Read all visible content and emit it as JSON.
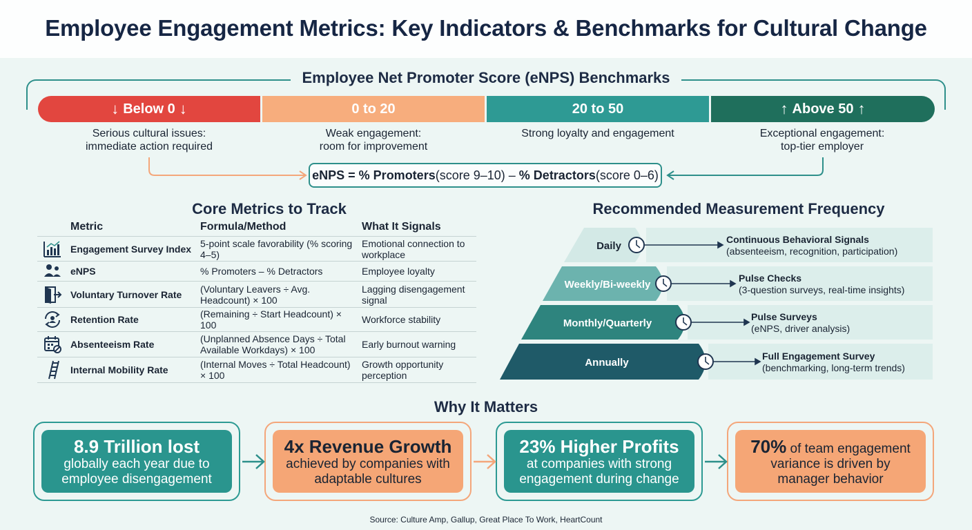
{
  "title": "Employee Engagement Metrics: Key Indicators & Benchmarks for Cultural Change",
  "enps": {
    "title": "Employee Net Promoter Score (eNPS) Benchmarks",
    "segments": [
      {
        "label": "Below 0",
        "desc_line1": "Serious cultural issues:",
        "desc_line2": "immediate action required",
        "color": "#e2463f"
      },
      {
        "label": "0 to 20",
        "desc_line1": "Weak engagement:",
        "desc_line2": "room for improvement",
        "color": "#f7ad7d"
      },
      {
        "label": "20 to 50",
        "desc_line1": "Strong loyalty and engagement",
        "desc_line2": "",
        "color": "#2e9a94"
      },
      {
        "label": "Above 50",
        "desc_line1": "Exceptional engagement:",
        "desc_line2": "top-tier employer",
        "color": "#1f6f5c"
      }
    ],
    "formula": {
      "lhs": "eNPS = ",
      "promoters": "% Promoters",
      "promoters_note": " (score 9–10) – ",
      "detractors": "% Detractors",
      "detractors_note": " (score 0–6)"
    }
  },
  "core_metrics": {
    "title": "Core Metrics to Track",
    "headers": [
      "Metric",
      "Formula/Method",
      "What It Signals"
    ],
    "rows": [
      {
        "icon": "bar-chart-icon",
        "metric": "Engagement Survey Index",
        "formula": "5-point scale favorability (% scoring 4–5)",
        "signal": "Emotional connection to workplace"
      },
      {
        "icon": "people-icon",
        "metric": "eNPS",
        "formula": "% Promoters – % Detractors",
        "signal": "Employee loyalty"
      },
      {
        "icon": "exit-door-icon",
        "metric": "Voluntary Turnover Rate",
        "formula": "(Voluntary Leavers ÷ Avg. Headcount) × 100",
        "signal": "Lagging disengagement signal"
      },
      {
        "icon": "retention-cycle-icon",
        "metric": "Retention Rate",
        "formula": "(Remaining ÷ Start Headcount) × 100",
        "signal": "Workforce stability"
      },
      {
        "icon": "calendar-blocked-icon",
        "metric": "Absenteeism Rate",
        "formula": "(Unplanned Absence Days ÷ Total Available Workdays) × 100",
        "signal": "Early burnout warning"
      },
      {
        "icon": "ladder-icon",
        "metric": "Internal Mobility Rate",
        "formula": "(Internal Moves ÷ Total Headcount) × 100",
        "signal": "Growth opportunity perception"
      }
    ]
  },
  "frequency": {
    "title": "Recommended Measurement Frequency",
    "levels": [
      {
        "label": "Daily",
        "heading": "Continuous Behavioral Signals",
        "detail": "(absenteeism, recognition, participation)",
        "color": "#d6ece9"
      },
      {
        "label": "Weekly/Bi-weekly",
        "heading": "Pulse Checks",
        "detail": "(3-question surveys, real-time insights)",
        "color": "#6fb6b1"
      },
      {
        "label": "Monthly/Quarterly",
        "heading": "Pulse Surveys",
        "detail": "(eNPS, driver analysis)",
        "color": "#2f847e"
      },
      {
        "label": "Annually",
        "heading": "Full Engagement Survey",
        "detail": "(benchmarking, long-term trends)",
        "color": "#1e5a68"
      }
    ]
  },
  "why": {
    "title": "Why It Matters",
    "cards": [
      {
        "big": "8.9 Trillion lost",
        "small": "globally each year due to employee disengagement",
        "style": "teal"
      },
      {
        "big": "4x Revenue Growth",
        "small": "achieved by companies with adaptable cultures",
        "style": "orange"
      },
      {
        "big": "23% Higher Profits",
        "small": "at companies with strong engagement during change",
        "style": "teal"
      },
      {
        "big": "70%",
        "small": " of team engagement variance is driven by manager behavior",
        "style": "orange"
      }
    ]
  },
  "source": "Source: Culture Amp, Gallup, Great Place To Work, HeartCount"
}
